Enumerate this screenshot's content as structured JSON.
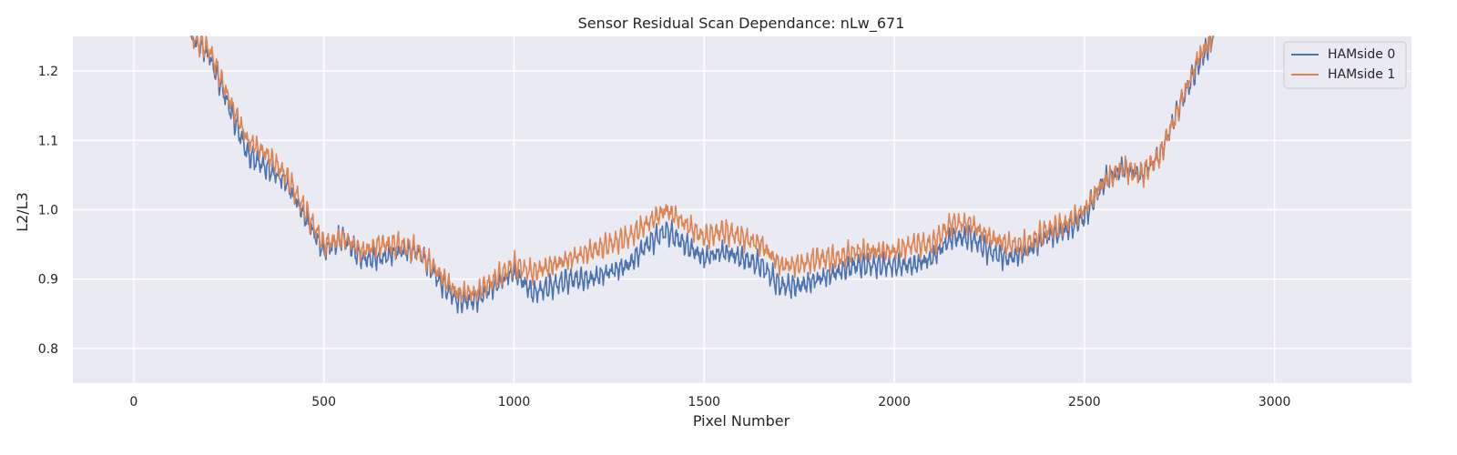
{
  "chart_data": {
    "type": "line",
    "title": "Sensor Residual Scan Dependance: nLw_671",
    "xlabel": "Pixel Number",
    "ylabel": "L2/L3",
    "xlim": [
      -160,
      3360
    ],
    "ylim": [
      0.75,
      1.25
    ],
    "x_ticks": [
      0,
      500,
      1000,
      1500,
      2000,
      2500,
      3000
    ],
    "y_ticks": [
      0.8,
      0.9,
      1.0,
      1.1,
      1.2
    ],
    "x_tick_labels": [
      "0",
      "500",
      "1000",
      "1500",
      "2000",
      "2500",
      "3000"
    ],
    "y_tick_labels": [
      "0.8",
      "0.9",
      "1.0",
      "1.1",
      "1.2"
    ],
    "grid": true,
    "background": "#eaeaf2",
    "legend_position": "top-right",
    "series": [
      {
        "name": "HAMside 0",
        "color": "#4c72b0",
        "x": [
          150,
          200,
          250,
          300,
          350,
          400,
          450,
          500,
          550,
          600,
          650,
          700,
          750,
          800,
          850,
          900,
          950,
          1000,
          1050,
          1100,
          1150,
          1200,
          1250,
          1300,
          1350,
          1400,
          1450,
          1500,
          1550,
          1600,
          1650,
          1700,
          1750,
          1800,
          1850,
          1900,
          1950,
          2000,
          2050,
          2100,
          2150,
          2200,
          2250,
          2300,
          2350,
          2400,
          2450,
          2500,
          2550,
          2600,
          2650,
          2700,
          2750,
          2800,
          2840
        ],
        "y": [
          1.25,
          1.22,
          1.15,
          1.08,
          1.06,
          1.04,
          0.99,
          0.94,
          0.96,
          0.93,
          0.93,
          0.94,
          0.94,
          0.9,
          0.87,
          0.87,
          0.89,
          0.91,
          0.88,
          0.89,
          0.9,
          0.9,
          0.91,
          0.92,
          0.95,
          0.97,
          0.95,
          0.93,
          0.94,
          0.93,
          0.92,
          0.89,
          0.89,
          0.9,
          0.91,
          0.92,
          0.92,
          0.92,
          0.92,
          0.93,
          0.96,
          0.96,
          0.94,
          0.93,
          0.94,
          0.96,
          0.97,
          0.99,
          1.04,
          1.06,
          1.05,
          1.08,
          1.15,
          1.21,
          1.25
        ]
      },
      {
        "name": "HAMside 1",
        "color": "#dd8452",
        "x": [
          150,
          200,
          250,
          300,
          350,
          400,
          450,
          500,
          550,
          600,
          650,
          700,
          750,
          800,
          850,
          900,
          950,
          1000,
          1050,
          1100,
          1150,
          1200,
          1250,
          1300,
          1350,
          1400,
          1450,
          1500,
          1550,
          1600,
          1650,
          1700,
          1750,
          1800,
          1850,
          1900,
          1950,
          2000,
          2050,
          2100,
          2150,
          2200,
          2250,
          2300,
          2350,
          2400,
          2450,
          2500,
          2550,
          2600,
          2650,
          2700,
          2750,
          2800,
          2840
        ],
        "y": [
          1.25,
          1.23,
          1.16,
          1.1,
          1.08,
          1.05,
          1.0,
          0.95,
          0.96,
          0.94,
          0.95,
          0.95,
          0.94,
          0.91,
          0.88,
          0.88,
          0.9,
          0.92,
          0.91,
          0.92,
          0.93,
          0.94,
          0.95,
          0.96,
          0.98,
          1.0,
          0.98,
          0.96,
          0.97,
          0.96,
          0.95,
          0.92,
          0.92,
          0.93,
          0.93,
          0.94,
          0.94,
          0.94,
          0.95,
          0.95,
          0.98,
          0.98,
          0.96,
          0.95,
          0.95,
          0.97,
          0.98,
          1.0,
          1.04,
          1.06,
          1.05,
          1.08,
          1.15,
          1.22,
          1.25
        ]
      }
    ]
  }
}
